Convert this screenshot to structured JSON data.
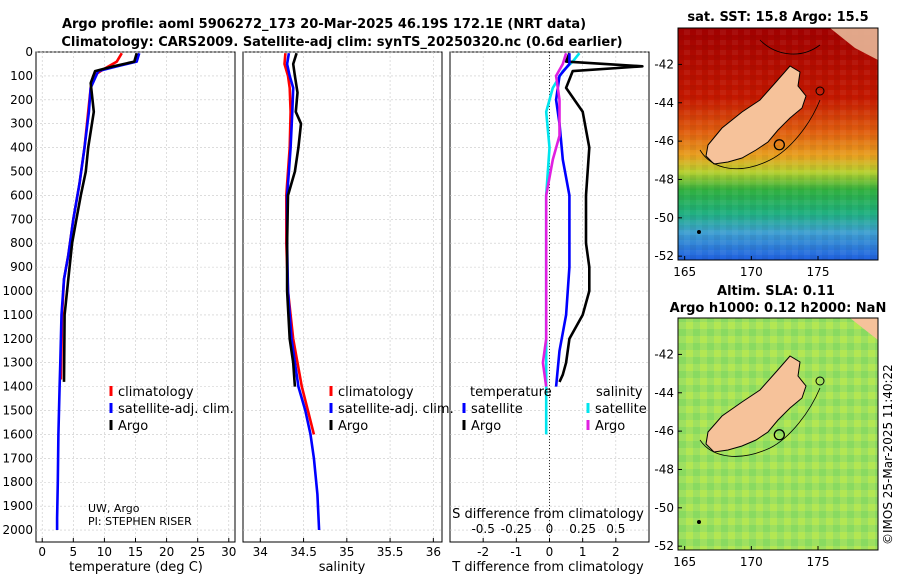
{
  "figure": {
    "title_line1": "Argo profile: aoml 5906272_173 20-Mar-2025 46.19S 172.1E (NRT data)",
    "title_line2": "Climatology: CARS2009. Satellite-adj clim: synTS_20250320.nc (0.6d earlier)",
    "credit_line1": "UW, Argo",
    "credit_line2": "PI: STEPHEN RISER",
    "timestamp": "©IMOS 25-Mar-2025 11:40:22",
    "colors": {
      "climatology": "#ff0000",
      "satellite": "#0000ff",
      "argo": "#000000",
      "sat_temp_diff": "#00e5ee",
      "sat_sal_diff": "#e020e0"
    }
  },
  "chart_data": [
    {
      "type": "line",
      "id": "temperature",
      "xlabel": "temperature (deg C)",
      "xlim": [
        -1,
        31
      ],
      "xticks": [
        0,
        5,
        10,
        15,
        20,
        25,
        30
      ],
      "xtick_labels": [
        "0",
        "5",
        "10",
        "15",
        "20",
        "25",
        "30"
      ],
      "ylim": [
        0,
        2050
      ],
      "yticks": [
        0,
        100,
        200,
        300,
        400,
        500,
        600,
        700,
        800,
        900,
        1000,
        1100,
        1200,
        1300,
        1400,
        1500,
        1600,
        1700,
        1800,
        1900,
        2000
      ],
      "ytick_labels": [
        "0",
        "100",
        "200",
        "300",
        "400",
        "500",
        "600",
        "700",
        "800",
        "900",
        "1000",
        "1100",
        "1200",
        "1300",
        "1400",
        "1500",
        "1600",
        "1700",
        "1800",
        "1900",
        "2000"
      ],
      "legend": [
        "climatology",
        "satellite-adj. clim.",
        "Argo"
      ],
      "series": [
        {
          "name": "climatology",
          "color": "#ff0000",
          "x": [
            12.8,
            12.0,
            10.0,
            8.2,
            7.8,
            7.4,
            6.8,
            6.0,
            5.0,
            4.2,
            3.5,
            3.2,
            3.0
          ],
          "y": [
            5,
            40,
            70,
            100,
            150,
            250,
            400,
            550,
            700,
            850,
            950,
            1100,
            1370
          ]
        },
        {
          "name": "satellite-adj. clim.",
          "color": "#0000ff",
          "x": [
            15.6,
            15.2,
            12.0,
            9.0,
            7.8,
            7.5,
            6.8,
            6.0,
            5.0,
            4.2,
            3.5,
            3.1,
            2.9,
            2.8,
            2.6,
            2.5,
            2.4,
            2.4
          ],
          "y": [
            5,
            40,
            60,
            80,
            150,
            250,
            400,
            550,
            700,
            850,
            950,
            1100,
            1300,
            1400,
            1600,
            1800,
            1950,
            2000
          ]
        },
        {
          "name": "Argo",
          "color": "#000000",
          "x": [
            15.2,
            14.8,
            11.5,
            8.5,
            7.8,
            8.3,
            7.4,
            7.0,
            6.2,
            5.5,
            4.8,
            4.2,
            3.6,
            3.5
          ],
          "y": [
            5,
            40,
            60,
            80,
            130,
            250,
            400,
            500,
            600,
            700,
            800,
            950,
            1100,
            1380
          ]
        }
      ]
    },
    {
      "type": "line",
      "id": "salinity",
      "xlabel": "salinity",
      "xlim": [
        33.8,
        36.1
      ],
      "xticks": [
        34,
        34.5,
        35,
        35.5,
        36
      ],
      "xtick_labels": [
        "34",
        "34.5",
        "35",
        "35.5",
        "36"
      ],
      "ylim": [
        0,
        2050
      ],
      "legend": [
        "climatology",
        "satellite-adj. clim.",
        "Argo"
      ],
      "series": [
        {
          "name": "climatology",
          "color": "#ff0000",
          "x": [
            34.29,
            34.28,
            34.32,
            34.34,
            34.35,
            34.34,
            34.32,
            34.3,
            34.3,
            34.32,
            34.38,
            34.48,
            34.55,
            34.62
          ],
          "y": [
            5,
            50,
            100,
            150,
            250,
            400,
            500,
            600,
            800,
            1000,
            1200,
            1400,
            1500,
            1600
          ]
        },
        {
          "name": "satellite-adj. clim.",
          "color": "#0000ff",
          "x": [
            34.33,
            34.31,
            34.34,
            34.38,
            34.37,
            34.35,
            34.33,
            34.31,
            34.31,
            34.32,
            34.36,
            34.44,
            34.52,
            34.58,
            34.62,
            34.66,
            34.68
          ],
          "y": [
            5,
            50,
            100,
            150,
            250,
            400,
            500,
            600,
            800,
            1000,
            1200,
            1400,
            1500,
            1600,
            1700,
            1850,
            2000
          ]
        },
        {
          "name": "Argo",
          "color": "#000000",
          "x": [
            34.42,
            34.38,
            34.4,
            34.43,
            34.41,
            34.47,
            34.44,
            34.4,
            34.32,
            34.31,
            34.31,
            34.34,
            34.38,
            34.4
          ],
          "y": [
            5,
            50,
            100,
            170,
            250,
            300,
            400,
            500,
            600,
            800,
            1000,
            1200,
            1300,
            1400
          ]
        }
      ]
    },
    {
      "type": "line",
      "id": "differences",
      "xlabel": "T difference from climatology",
      "top_axis_label": "S difference from climatology",
      "xlim": [
        -3,
        3
      ],
      "xticks": [
        -2,
        -1,
        0,
        1,
        2
      ],
      "xtick_labels": [
        "-2",
        "-1",
        "0",
        "1",
        "2"
      ],
      "top_xticks": [
        -2,
        -1,
        0,
        1,
        2
      ],
      "top_xtick_labels": [
        "-0.5",
        "-0.25",
        "0",
        "0.25",
        "0.5"
      ],
      "ylim": [
        0,
        2050
      ],
      "legend_left_title": "temperature",
      "legend_right_title": "salinity",
      "legend": [
        "satellite",
        "Argo",
        "satellite",
        "Argo"
      ],
      "series": [
        {
          "name": "temperature satellite",
          "color": "#00e5ee",
          "x": [
            0.9,
            0.7,
            0.4,
            0.1,
            -0.1,
            0.0,
            -0.1,
            -0.1,
            -0.1,
            -0.1,
            -0.1,
            -0.1
          ],
          "y": [
            5,
            40,
            80,
            150,
            250,
            400,
            600,
            800,
            1000,
            1200,
            1400,
            1600
          ]
        },
        {
          "name": "temperature Argo",
          "color": "#000000",
          "x": [
            0.6,
            0.5,
            2.8,
            0.7,
            0.5,
            1.0,
            1.2,
            1.1,
            1.1,
            1.2,
            1.2,
            1.0,
            0.6,
            0.5,
            0.4,
            0.3
          ],
          "y": [
            5,
            40,
            60,
            80,
            150,
            250,
            400,
            600,
            800,
            900,
            1000,
            1100,
            1200,
            1300,
            1350,
            1380
          ]
        },
        {
          "name": "salinity satellite",
          "color": "#0000ff",
          "x": [
            0.6,
            0.6,
            0.3,
            0.2,
            0.3,
            0.4,
            0.6,
            0.6,
            0.6,
            0.5,
            0.3,
            0.2
          ],
          "y": [
            5,
            50,
            100,
            200,
            300,
            450,
            600,
            700,
            900,
            1100,
            1250,
            1400
          ]
        },
        {
          "name": "salinity Argo",
          "color": "#e020e0",
          "x": [
            0.5,
            0.4,
            0.2,
            0.3,
            0.3,
            0.1,
            -0.1,
            -0.1,
            -0.1,
            -0.1,
            -0.1,
            -0.2,
            -0.1
          ],
          "y": [
            5,
            50,
            100,
            200,
            350,
            450,
            600,
            700,
            800,
            1000,
            1200,
            1300,
            1400
          ]
        }
      ]
    },
    {
      "type": "heatmap",
      "id": "sst_map",
      "title": "sat. SST: 15.8 Argo: 15.5",
      "xticks": [
        165,
        170,
        175
      ],
      "xtick_labels": [
        "165",
        "170",
        "175"
      ],
      "xlim": [
        164.5,
        179.5
      ],
      "yticks": [
        -42,
        -44,
        -46,
        -48,
        -50,
        -52
      ],
      "ytick_labels": [
        "-42",
        "-44",
        "-46",
        "-48",
        "-50",
        "-52"
      ],
      "ylim": [
        -52.2,
        -40.1
      ],
      "float_position": [
        172.1,
        -46.19
      ]
    },
    {
      "type": "heatmap",
      "id": "sla_map",
      "title_line1": "Altim. SLA: 0.11",
      "title_line2": "Argo h1000: 0.12 h2000: NaN",
      "xticks": [
        165,
        170,
        175
      ],
      "xtick_labels": [
        "165",
        "170",
        "175"
      ],
      "xlim": [
        164.5,
        179.5
      ],
      "yticks": [
        -42,
        -44,
        -46,
        -48,
        -50,
        -52
      ],
      "ytick_labels": [
        "-42",
        "-44",
        "-46",
        "-48",
        "-50",
        "-52"
      ],
      "ylim": [
        -52.2,
        -40.1
      ],
      "float_position": [
        172.1,
        -46.19
      ]
    }
  ]
}
